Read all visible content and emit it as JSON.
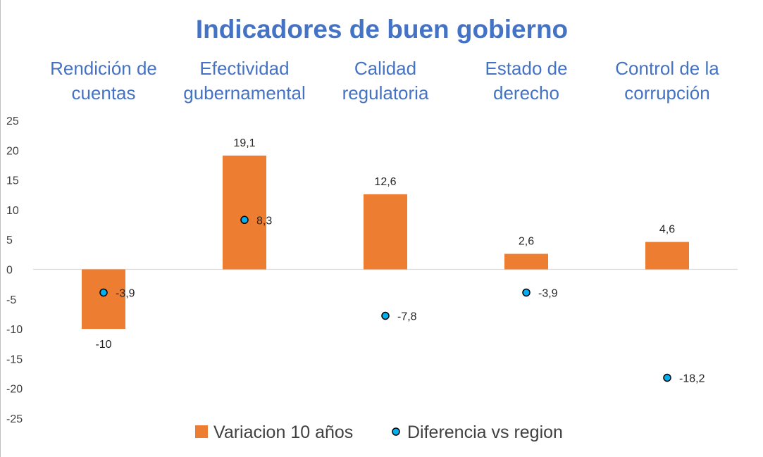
{
  "chart_data": {
    "type": "bar",
    "title": "Indicadores de buen gobierno",
    "categories": [
      [
        "Rendición de",
        "cuentas"
      ],
      [
        "Efectividad",
        "gubernamental"
      ],
      [
        "Calidad",
        "regulatoria"
      ],
      [
        "Estado de",
        "derecho"
      ],
      [
        "Control de la",
        "corrupción"
      ]
    ],
    "series": [
      {
        "name": "Variacion 10 años",
        "kind": "bar",
        "color": "#ed7d31",
        "values": [
          -10,
          19.1,
          12.6,
          2.6,
          4.6
        ],
        "labels": [
          "-10",
          "19,1",
          "12,6",
          "2,6",
          "4,6"
        ]
      },
      {
        "name": "Diferencia vs region",
        "kind": "marker",
        "color": "#00b0f0",
        "values": [
          -3.9,
          8.3,
          -7.8,
          -3.9,
          -18.2
        ],
        "labels": [
          "-3,9",
          "8,3",
          "-7,8",
          "-3,9",
          "-18,2"
        ]
      }
    ],
    "ylim": [
      -25,
      25
    ],
    "yticks": [
      25,
      20,
      15,
      10,
      5,
      0,
      -5,
      -10,
      -15,
      -20,
      -25
    ],
    "xlabel": "",
    "ylabel": "",
    "grid": false,
    "legend": "bottom-center"
  }
}
